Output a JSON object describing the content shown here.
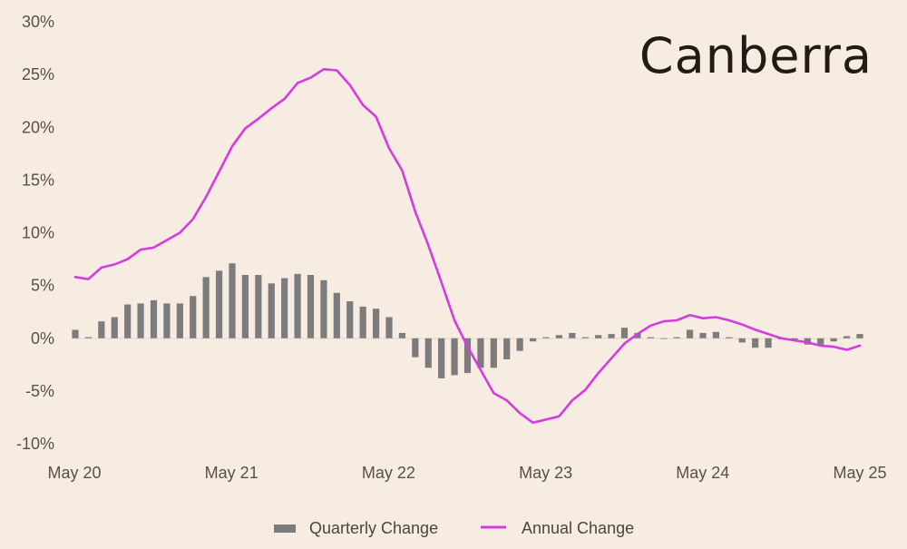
{
  "chart_data": {
    "type": "bar",
    "title": "Canberra",
    "xlabel": "",
    "ylabel": "",
    "ylim": [
      -10,
      30
    ],
    "y_ticks": [
      -10,
      -5,
      0,
      5,
      10,
      15,
      20,
      25,
      30
    ],
    "y_tick_labels": [
      "-10%",
      "-5%",
      "0%",
      "5%",
      "10%",
      "15%",
      "20%",
      "25%",
      "30%"
    ],
    "x_ticks": [
      "May 20",
      "May 21",
      "May 22",
      "May 23",
      "May 24",
      "May 25"
    ],
    "grid": false,
    "legend_position": "bottom",
    "x": [
      "Jun 20",
      "Jul 20",
      "Aug 20",
      "Sep 20",
      "Oct 20",
      "Nov 20",
      "Dec 20",
      "Jan 21",
      "Feb 21",
      "Mar 21",
      "Apr 21",
      "May 21",
      "Jun 21",
      "Jul 21",
      "Aug 21",
      "Sep 21",
      "Oct 21",
      "Nov 21",
      "Dec 21",
      "Jan 22",
      "Feb 22",
      "Mar 22",
      "Apr 22",
      "May 22",
      "Jun 22",
      "Jul 22",
      "Aug 22",
      "Sep 22",
      "Oct 22",
      "Nov 22",
      "Dec 22",
      "Jan 23",
      "Feb 23",
      "Mar 23",
      "Apr 23",
      "May 23",
      "Jun 23",
      "Jul 23",
      "Aug 23",
      "Sep 23",
      "Oct 23",
      "Nov 23",
      "Dec 23",
      "Jan 24",
      "Feb 24",
      "Mar 24",
      "Apr 24",
      "May 24",
      "Jun 24",
      "Jul 24",
      "Aug 24",
      "Sep 24",
      "Oct 24",
      "Nov 24",
      "Dec 24",
      "Jan 25",
      "Feb 25",
      "Mar 25",
      "Apr 25",
      "May 25",
      "Jun 25"
    ],
    "series": [
      {
        "name": "Quarterly Change",
        "kind": "bar",
        "color": "#7c7c7c",
        "values": [
          0.8,
          0.1,
          1.6,
          2.0,
          3.2,
          3.3,
          3.6,
          3.3,
          3.3,
          4.0,
          5.8,
          6.4,
          7.1,
          6.0,
          6.0,
          5.2,
          5.7,
          6.1,
          6.0,
          5.5,
          4.3,
          3.5,
          3.0,
          2.8,
          2.0,
          0.5,
          -1.8,
          -2.8,
          -3.8,
          -3.5,
          -3.3,
          -2.8,
          -2.8,
          -2.0,
          -1.2,
          -0.3,
          0.1,
          0.3,
          0.5,
          0.1,
          0.3,
          0.4,
          1.0,
          0.5,
          0.1,
          0.0,
          0.1,
          0.8,
          0.5,
          0.6,
          0.1,
          -0.4,
          -0.9,
          -0.9,
          -0.1,
          -0.2,
          -0.6,
          -0.6,
          -0.3,
          0.2,
          0.4
        ]
      },
      {
        "name": "Annual Change",
        "kind": "line",
        "color": "#d63ae0",
        "values": [
          5.8,
          5.6,
          6.7,
          7.0,
          7.5,
          8.4,
          8.6,
          9.3,
          10.0,
          11.3,
          13.4,
          15.8,
          18.2,
          19.9,
          20.8,
          21.8,
          22.7,
          24.2,
          24.7,
          25.5,
          25.4,
          24.0,
          22.1,
          21.0,
          18.0,
          15.9,
          12.0,
          8.8,
          5.3,
          1.7,
          -0.8,
          -3.0,
          -5.2,
          -5.9,
          -7.1,
          -8.0,
          -7.7,
          -7.4,
          -5.9,
          -4.9,
          -3.3,
          -1.9,
          -0.5,
          0.4,
          1.2,
          1.6,
          1.7,
          2.2,
          1.9,
          2.0,
          1.7,
          1.3,
          0.8,
          0.4,
          0.0,
          -0.2,
          -0.4,
          -0.7,
          -0.8,
          -1.1,
          -0.7
        ]
      }
    ]
  }
}
